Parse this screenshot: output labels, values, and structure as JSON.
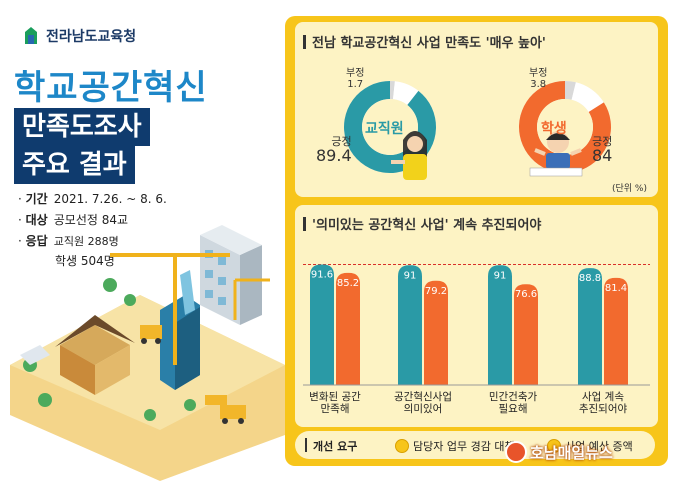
{
  "header": {
    "logo_text": "전라남도교육청",
    "title": "학교공간혁신",
    "subtitle_line1": "만족도조사",
    "subtitle_line2": "주요 결과"
  },
  "info": {
    "period_label": "기간",
    "period_value": "2021. 7.26. ~ 8. 6.",
    "target_label": "대상",
    "target_value": "공모선정 84교",
    "respond_label": "응답",
    "respond_staff": "교직원 288명",
    "respond_students": "학생 504명"
  },
  "satisfaction": {
    "title": "전남 학교공간혁신 사업 만족도 '매우 높아'",
    "unit": "(단위 %)",
    "colors": {
      "staff": "#2a9aa6",
      "student": "#f26a2e",
      "negative": "#f2f2f2"
    }
  },
  "continuation": {
    "title": "'의미있는 공간혁신 사업' 계속 추진되어야",
    "colors": {
      "teal": "#2a9aa6",
      "orange": "#f26a2e",
      "dashed": "#d9302a"
    }
  },
  "improvement": {
    "label": "개선 요구",
    "item1": "담당자 업무 경감 대책",
    "item2": "사업 예산 증액"
  },
  "watermark": "호남매일뉴스",
  "chart_data": [
    {
      "type": "pie",
      "title": "교직원",
      "labels": [
        "긍정",
        "부정"
      ],
      "values": [
        89.4,
        1.7
      ]
    },
    {
      "type": "pie",
      "title": "학생",
      "labels": [
        "긍정",
        "부정"
      ],
      "values": [
        84,
        3.8
      ]
    },
    {
      "type": "bar",
      "title": "'의미있는 공간혁신 사업' 계속 추진되어야",
      "categories": [
        "변화된 공간\n만족해",
        "공간혁신사업\n의미있어",
        "민간건축가\n필요해",
        "사업 계속\n추진되어야"
      ],
      "series": [
        {
          "values": [
            91.6,
            91,
            91,
            88.8
          ]
        },
        {
          "values": [
            85.2,
            79.2,
            76.6,
            81.4
          ]
        }
      ],
      "ylim": [
        0,
        100
      ]
    }
  ]
}
